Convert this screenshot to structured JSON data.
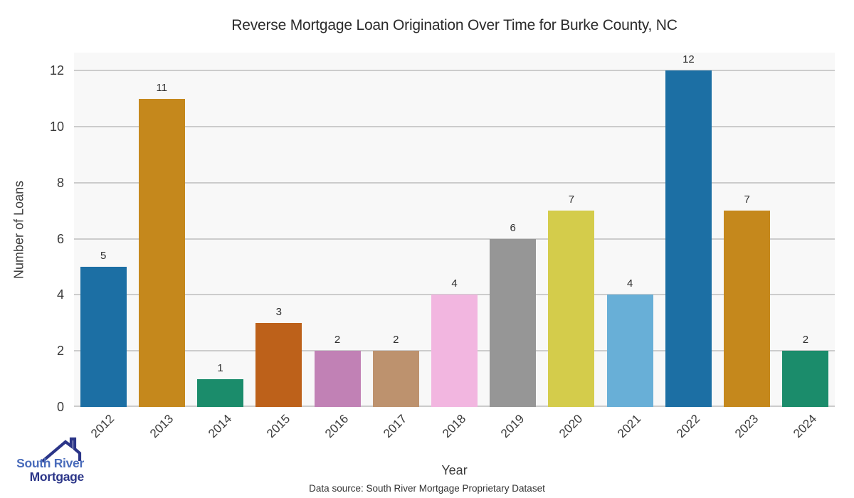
{
  "chart": {
    "title": "Reverse Mortgage Loan Origination Over Time for Burke County, NC",
    "xlabel": "Year",
    "ylabel": "Number of Loans",
    "source_note": "Data source: South River Mortgage Proprietary Dataset",
    "plot_background": "#f8f8f8",
    "grid_color": "#cccccc",
    "title_color": "#2b2b2b",
    "tick_color": "#3a3a3a",
    "value_label_color": "#2e2e2e"
  },
  "chart_data": {
    "type": "bar",
    "title": "Reverse Mortgage Loan Origination Over Time for Burke County, NC",
    "xlabel": "Year",
    "ylabel": "Number of Loans",
    "categories": [
      "2012",
      "2013",
      "2014",
      "2015",
      "2016",
      "2017",
      "2018",
      "2019",
      "2020",
      "2021",
      "2022",
      "2023",
      "2024"
    ],
    "values": [
      5,
      11,
      1,
      3,
      2,
      2,
      4,
      6,
      7,
      4,
      12,
      7,
      2
    ],
    "bar_colors": [
      "#1c6fa4",
      "#c5881c",
      "#1b8c6b",
      "#bd611a",
      "#c181b5",
      "#bd926e",
      "#f2b6e0",
      "#969696",
      "#d4cc4b",
      "#68afd7",
      "#1c6fa4",
      "#c5881c",
      "#1b8c6b"
    ],
    "value_labels": [
      5,
      11,
      1,
      3,
      2,
      2,
      4,
      6,
      7,
      4,
      12,
      7,
      2
    ],
    "yticks": [
      0,
      2,
      4,
      6,
      8,
      10,
      12
    ],
    "ylim": [
      0,
      12.64
    ],
    "grid": "horizontal",
    "legend": "none",
    "x_tick_rotation": 45
  },
  "logo": {
    "line1": "South River",
    "line2": "Mortgage",
    "line1_color": "#4a6cbb",
    "line2_color": "#2b3588",
    "icon_color": "#2b3588"
  }
}
